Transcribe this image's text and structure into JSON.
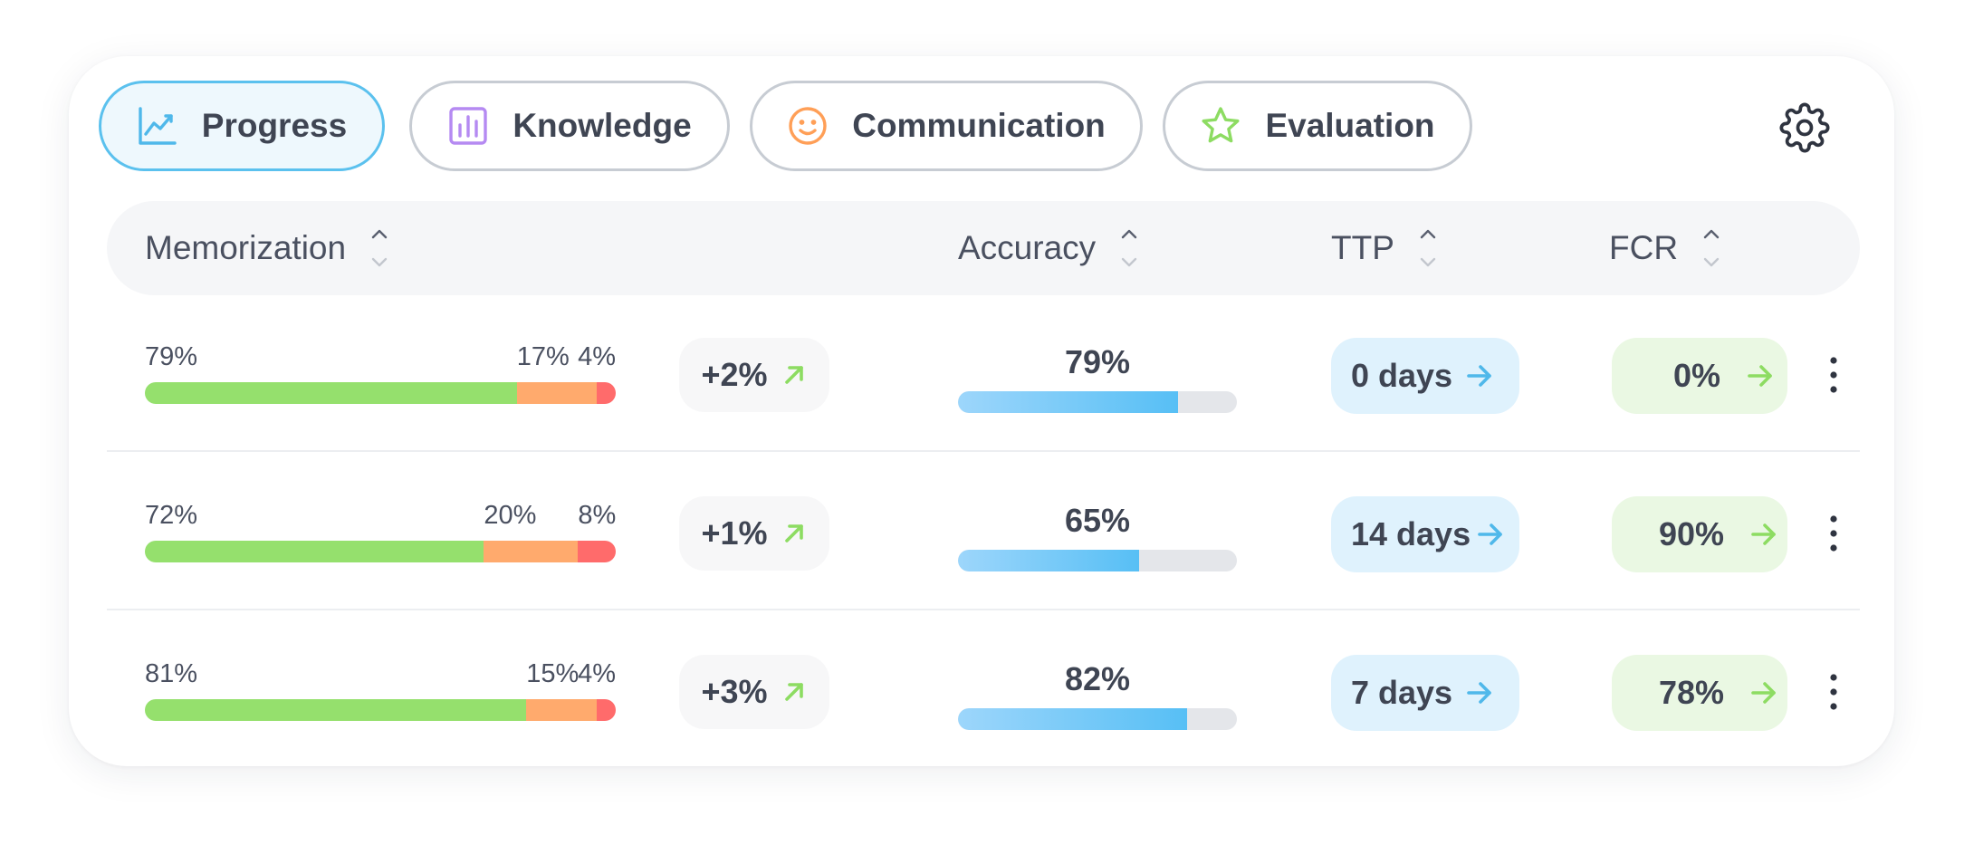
{
  "tabs": [
    {
      "label": "Progress",
      "icon": "chart-line-icon",
      "active": true,
      "color": "#4fb8ea"
    },
    {
      "label": "Knowledge",
      "icon": "bar-chart-icon",
      "active": false,
      "color": "#b58af2"
    },
    {
      "label": "Communication",
      "icon": "smiley-icon",
      "active": false,
      "color": "#ff9f57"
    },
    {
      "label": "Evaluation",
      "icon": "star-icon",
      "active": false,
      "color": "#8ddc62"
    }
  ],
  "settings_icon": "gear-icon",
  "columns": {
    "memorization": "Memorization",
    "accuracy": "Accuracy",
    "ttp": "TTP",
    "fcr": "FCR"
  },
  "rows": [
    {
      "memorization": {
        "green": 79,
        "orange": 17,
        "red": 4,
        "green_label": "79%",
        "orange_label": "17%",
        "red_label": "4%"
      },
      "delta": "+2%",
      "accuracy": {
        "value": 79,
        "label": "79%"
      },
      "ttp": "0 days",
      "fcr": "0%"
    },
    {
      "memorization": {
        "green": 72,
        "orange": 20,
        "red": 8,
        "green_label": "72%",
        "orange_label": "20%",
        "red_label": "8%"
      },
      "delta": "+1%",
      "accuracy": {
        "value": 65,
        "label": "65%"
      },
      "ttp": "14 days",
      "fcr": "90%"
    },
    {
      "memorization": {
        "green": 81,
        "orange": 15,
        "red": 4,
        "green_label": "81%",
        "orange_label": "15%",
        "red_label": "4%"
      },
      "delta": "+3%",
      "accuracy": {
        "value": 82,
        "label": "82%"
      },
      "ttp": "7 days",
      "fcr": "78%"
    }
  ],
  "colors": {
    "green": "#95e06d",
    "orange": "#ffaa6d",
    "red": "#ff6b6b",
    "accent_blue": "#57bff5",
    "ttp_arrow": "#4fb8ea",
    "fcr_arrow": "#8ddc62"
  }
}
